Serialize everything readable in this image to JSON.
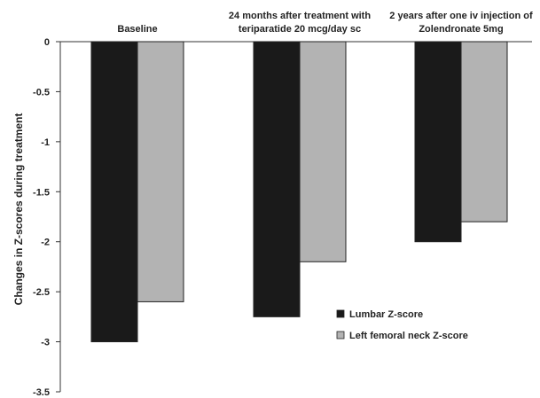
{
  "chart_data": {
    "type": "bar",
    "title": "",
    "xlabel": "",
    "ylabel": "Changes in Z-scores during treatment",
    "ylim": [
      -3.5,
      0
    ],
    "yticks": [
      0,
      -0.5,
      -1,
      -1.5,
      -2,
      -2.5,
      -3,
      -3.5
    ],
    "ytick_labels": [
      "0",
      "-0.5",
      "-1",
      "-1.5",
      "-2",
      "-2.5",
      "-3",
      "-3.5"
    ],
    "categories": [
      [
        "Baseline"
      ],
      [
        "24 months after treatment with",
        "teriparatide 20 mcg/day sc"
      ],
      [
        "2 years after one iv  injection of",
        "Zolendronate 5mg"
      ]
    ],
    "series": [
      {
        "name": "Lumbar Z-score",
        "color": "#1a1a1a",
        "values": [
          -3.0,
          -2.75,
          -2.0
        ]
      },
      {
        "name": "Left femoral neck Z-score",
        "color": "#b3b3b3",
        "values": [
          -2.6,
          -2.2,
          -1.8
        ]
      }
    ],
    "legend_position": "bottom-right",
    "grid": false
  }
}
